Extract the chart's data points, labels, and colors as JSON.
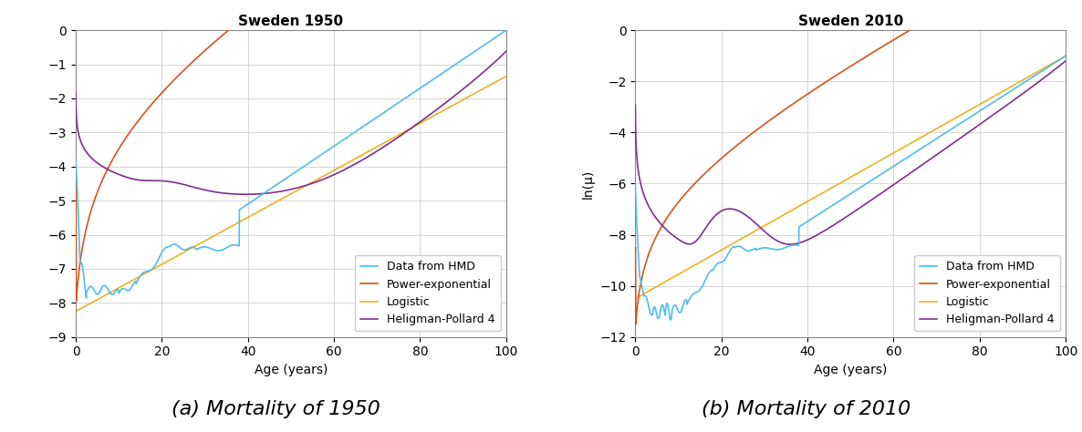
{
  "title1": "Sweden 1950",
  "title2": "Sweden 2010",
  "xlabel": "Age (years)",
  "ylabel1": "",
  "ylabel2": "ln(μ)",
  "caption1": "(a) Mortality of 1950",
  "caption2": "(b) Mortality of 2010",
  "xlim": [
    0,
    100
  ],
  "ylim1": [
    -9,
    0
  ],
  "ylim2": [
    -12,
    0
  ],
  "yticks1": [
    0,
    -1,
    -2,
    -3,
    -4,
    -5,
    -6,
    -7,
    -8,
    -9
  ],
  "yticks2": [
    0,
    -2,
    -4,
    -6,
    -8,
    -10,
    -12
  ],
  "xticks": [
    0,
    20,
    40,
    60,
    80,
    100
  ],
  "colors": {
    "hmd": "#4DBEEE",
    "power_exp": "#D95319",
    "logistic": "#EDB120",
    "heligman": "#7E2F8E"
  },
  "legend_labels": [
    "Data from HMD",
    "Power-exponential",
    "Logistic",
    "Heligman-Pollard 4"
  ],
  "line_width": 1.2,
  "title_fontsize": 11,
  "caption_fontsize": 16,
  "axis_fontsize": 10,
  "legend_fontsize": 9,
  "background_color": "#ffffff",
  "grid_color": "#d0d0d0"
}
